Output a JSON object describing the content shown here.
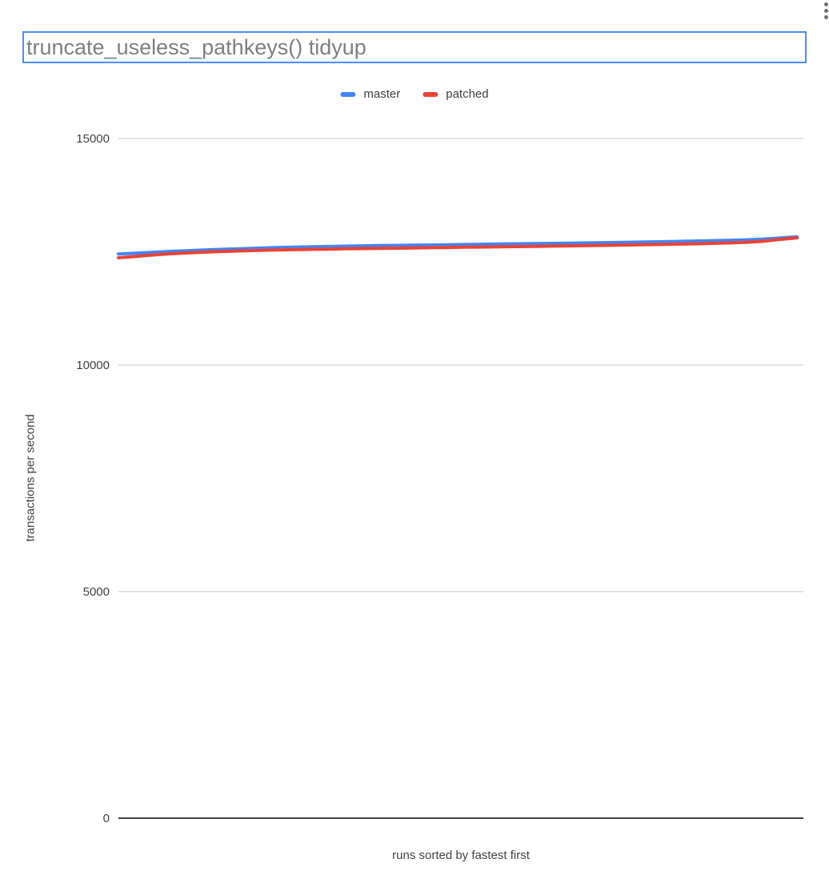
{
  "icons": {
    "more_options_menu": "vertical-kebab-three-dots"
  },
  "chart_title": {
    "value": "truncate_useless_pathkeys() tidyup"
  },
  "chart_data": {
    "type": "line",
    "title": "truncate_useless_pathkeys() tidyup",
    "xlabel": "runs sorted by fastest first",
    "ylabel": "transactions per second",
    "ylim": [
      0,
      15000
    ],
    "yticks": [
      0,
      5000,
      10000,
      15000
    ],
    "grid": true,
    "legend_position": "top-center",
    "x_axis_tick_labels": "none shown (runs are unlabeled, evenly spaced)",
    "colors": {
      "gridline": "#d9d9d9",
      "baseline": "#424242",
      "title_text": "#7f7f7f",
      "title_box_border": "#4e8cf9"
    },
    "series": [
      {
        "name": "master",
        "color": "#4285f4",
        "values": [
          12450,
          12470,
          12490,
          12508,
          12524,
          12540,
          12555,
          12568,
          12580,
          12592,
          12601,
          12610,
          12617,
          12624,
          12630,
          12636,
          12641,
          12646,
          12651,
          12656,
          12661,
          12666,
          12671,
          12676,
          12681,
          12686,
          12691,
          12696,
          12702,
          12708,
          12714,
          12721,
          12728,
          12736,
          12744,
          12753,
          12763,
          12780,
          12805,
          12828
        ]
      },
      {
        "name": "patched",
        "color": "#ea4335",
        "values": [
          12368,
          12400,
          12430,
          12455,
          12476,
          12493,
          12507,
          12519,
          12529,
          12538,
          12546,
          12553,
          12559,
          12565,
          12570,
          12575,
          12580,
          12585,
          12590,
          12595,
          12600,
          12605,
          12610,
          12615,
          12620,
          12625,
          12630,
          12636,
          12642,
          12648,
          12654,
          12660,
          12667,
          12675,
          12684,
          12694,
          12706,
          12730,
          12772,
          12808
        ]
      }
    ]
  }
}
